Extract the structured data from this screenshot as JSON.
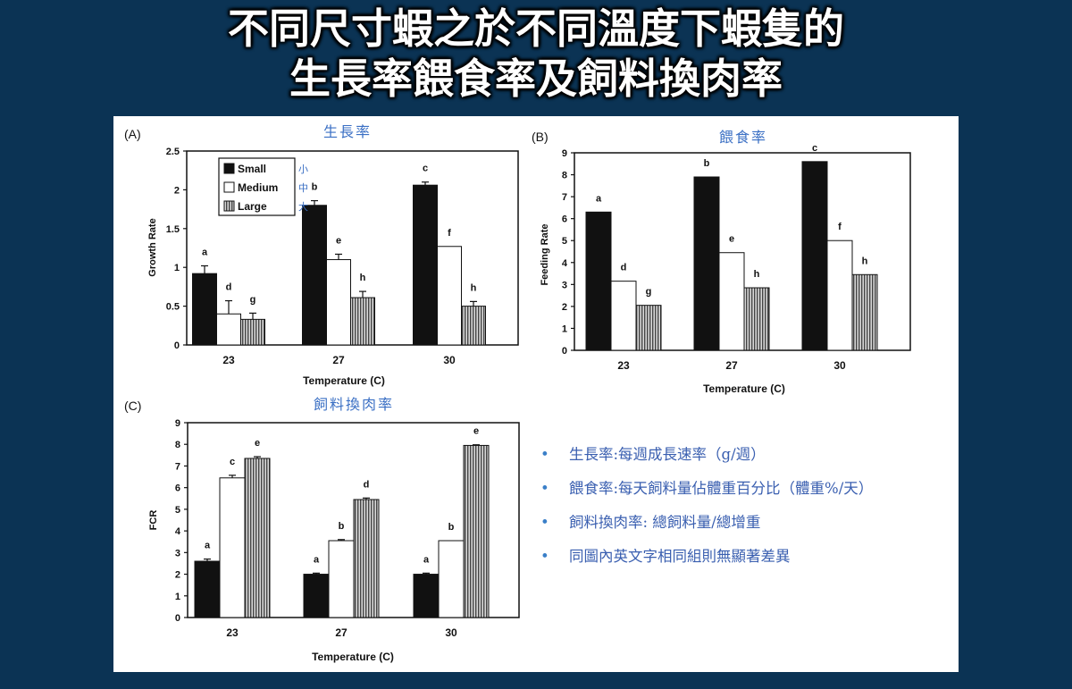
{
  "slide": {
    "title_line1": "不同尺寸蝦之於不同溫度下蝦隻的",
    "title_line2": "生長率餵食率及飼料換肉率"
  },
  "colors": {
    "background": "#0b3354",
    "small": "#111111",
    "medium": "#ffffff",
    "large": "#9a9a9a",
    "note_text": "#3a5fb0",
    "subtitle": "#3a6fc4"
  },
  "legend": [
    {
      "key": "small",
      "label": "Small",
      "cn": "小"
    },
    {
      "key": "medium",
      "label": "Medium",
      "cn": "中"
    },
    {
      "key": "large",
      "label": "Large",
      "cn": "大"
    }
  ],
  "notes": [
    "生長率:每週成長速率（g/週）",
    "餵食率:每天飼料量佔體重百分比（體重%/天）",
    "飼料換肉率: 總飼料量/總增重",
    "同圖內英文字相同組則無顯著差異"
  ],
  "chart_data": [
    {
      "id": "A",
      "panel_label": "(A)",
      "subtitle": "生長率",
      "type": "bar",
      "categories": [
        "23",
        "27",
        "30"
      ],
      "xlabel": "Temperature (C)",
      "ylabel": "Growth Rate",
      "ylim": [
        0,
        2.5
      ],
      "yticks": [
        0,
        0.5,
        1,
        1.5,
        2,
        2.5
      ],
      "ytick_labels": [
        "0",
        "0.5",
        "1",
        "1.5",
        "2",
        "2.5"
      ],
      "legend_placement": "top-left",
      "series": [
        {
          "name": "Small",
          "values": [
            0.92,
            1.8,
            2.06
          ],
          "errors": [
            0.1,
            0.06,
            0.04
          ],
          "letters": [
            "a",
            "b",
            "c"
          ]
        },
        {
          "name": "Medium",
          "values": [
            0.4,
            1.1,
            1.27
          ],
          "errors": [
            0.17,
            0.07,
            0.0
          ],
          "letters": [
            "d",
            "e",
            "f"
          ]
        },
        {
          "name": "Large",
          "values": [
            0.33,
            0.61,
            0.5
          ],
          "errors": [
            0.08,
            0.08,
            0.06
          ],
          "letters": [
            "g",
            "h",
            "h"
          ]
        }
      ]
    },
    {
      "id": "B",
      "panel_label": "(B)",
      "subtitle": "餵食率",
      "type": "bar",
      "categories": [
        "23",
        "27",
        "30"
      ],
      "xlabel": "Temperature (C)",
      "ylabel": "Feeding Rate",
      "ylim": [
        0,
        9
      ],
      "yticks": [
        0,
        1,
        2,
        3,
        4,
        5,
        6,
        7,
        8,
        9
      ],
      "ytick_labels": [
        "0",
        "1",
        "2",
        "3",
        "4",
        "5",
        "6",
        "7",
        "8",
        "9"
      ],
      "series": [
        {
          "name": "Small",
          "values": [
            6.3,
            7.9,
            8.6
          ],
          "errors": [
            0,
            0,
            0
          ],
          "letters": [
            "a",
            "b",
            "c"
          ]
        },
        {
          "name": "Medium",
          "values": [
            3.15,
            4.45,
            5.0
          ],
          "errors": [
            0,
            0,
            0
          ],
          "letters": [
            "d",
            "e",
            "f"
          ]
        },
        {
          "name": "Large",
          "values": [
            2.05,
            2.85,
            3.45
          ],
          "errors": [
            0,
            0,
            0
          ],
          "letters": [
            "g",
            "h",
            "h"
          ]
        }
      ]
    },
    {
      "id": "C",
      "panel_label": "(C)",
      "subtitle": "飼料換肉率",
      "type": "bar",
      "categories": [
        "23",
        "27",
        "30"
      ],
      "xlabel": "Temperature (C)",
      "ylabel": "FCR",
      "ylim": [
        0,
        9
      ],
      "yticks": [
        0,
        1,
        2,
        3,
        4,
        5,
        6,
        7,
        8,
        9
      ],
      "ytick_labels": [
        "0",
        "1",
        "2",
        "3",
        "4",
        "5",
        "6",
        "7",
        "8",
        "9"
      ],
      "series": [
        {
          "name": "Small",
          "values": [
            2.6,
            2.0,
            2.0
          ],
          "errors": [
            0.1,
            0.05,
            0.05
          ],
          "letters": [
            "a",
            "a",
            "a"
          ]
        },
        {
          "name": "Medium",
          "values": [
            6.45,
            3.55,
            3.55
          ],
          "errors": [
            0.12,
            0.05,
            0.0
          ],
          "letters": [
            "c",
            "b",
            "b"
          ]
        },
        {
          "name": "Large",
          "values": [
            7.35,
            5.45,
            7.95
          ],
          "errors": [
            0.08,
            0.07,
            0.03
          ],
          "letters": [
            "e",
            "d",
            "e"
          ]
        }
      ]
    }
  ]
}
